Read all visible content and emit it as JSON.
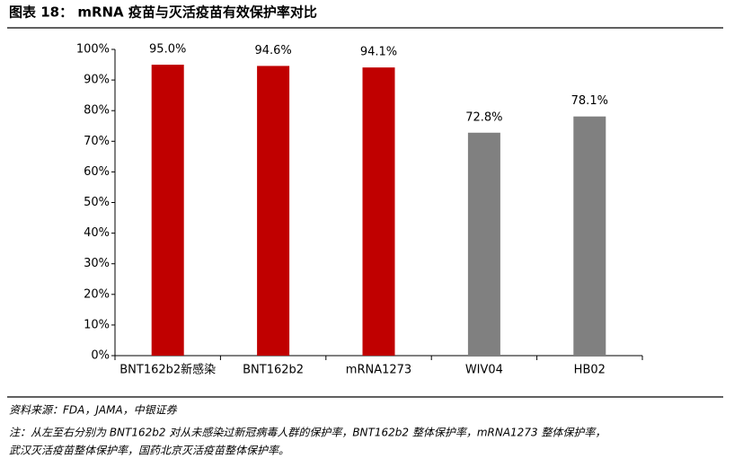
{
  "chart_data": {
    "type": "bar",
    "title": "图表 18： mRNA 疫苗与灭活疫苗有效保护率对比",
    "categories": [
      "BNT162b2新感染",
      "BNT162b2",
      "mRNA1273",
      "WIV04",
      "HB02"
    ],
    "values": [
      95.0,
      94.6,
      94.1,
      72.8,
      78.1
    ],
    "value_labels": [
      "95.0%",
      "94.6%",
      "94.1%",
      "72.8%",
      "78.1%"
    ],
    "colors": [
      "#c00000",
      "#c00000",
      "#c00000",
      "#808080",
      "#808080"
    ],
    "ylim": [
      0,
      100
    ],
    "yticks": [
      {
        "value": 0,
        "label": "0%"
      },
      {
        "value": 10,
        "label": "10%"
      },
      {
        "value": 20,
        "label": "20%"
      },
      {
        "value": 30,
        "label": "30%"
      },
      {
        "value": 40,
        "label": "40%"
      },
      {
        "value": 50,
        "label": "50%"
      },
      {
        "value": 60,
        "label": "60%"
      },
      {
        "value": 70,
        "label": "70%"
      },
      {
        "value": 80,
        "label": "80%"
      },
      {
        "value": 90,
        "label": "90%"
      },
      {
        "value": 100,
        "label": "100%"
      }
    ],
    "grid": false
  },
  "source": "资料来源：FDA，JAMA，中银证券",
  "note": [
    "注：从左至右分别为 BNT162b2 对从未感染过新冠病毒人群的保护率，BNT162b2 整体保护率，mRNA1273 整体保护率，",
    "武汉灭活疫苗整体保护率，国药北京灭活疫苗整体保护率。"
  ]
}
